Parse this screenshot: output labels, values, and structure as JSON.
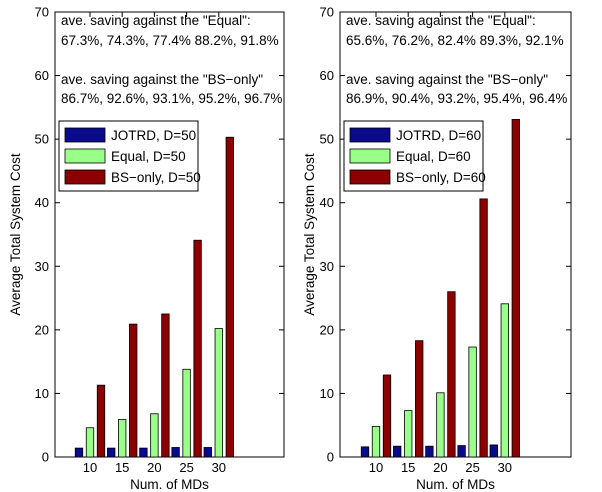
{
  "chart_data": [
    {
      "type": "bar",
      "categories": [
        "10",
        "15",
        "20",
        "25",
        "30"
      ],
      "xlabel": "Num. of MDs",
      "ylabel": "Average Total System Cost",
      "ylim": [
        0,
        70
      ],
      "yticks": [
        0,
        10,
        20,
        30,
        40,
        50,
        60,
        70
      ],
      "grid": false,
      "legend_position": "middle-left",
      "series": [
        {
          "name": "JOTRD, D=50",
          "color": "#0a0a8c",
          "values": [
            1.4,
            1.4,
            1.4,
            1.5,
            1.5
          ]
        },
        {
          "name": "Equal, D=50",
          "color": "#99ff88",
          "values": [
            4.6,
            5.9,
            6.8,
            13.8,
            20.2
          ]
        },
        {
          "name": "BS−only, D=50",
          "color": "#8b0000",
          "values": [
            11.3,
            20.9,
            22.5,
            34.1,
            50.3
          ]
        }
      ],
      "annotations": [
        "ave. saving against the \"Equal\":",
        "67.3%, 74.3%, 77.4% 88.2%, 91.8%",
        "ave. saving against the \"BS−only\"",
        "86.7%, 92.6%, 93.1%, 95.2%, 96.7%"
      ]
    },
    {
      "type": "bar",
      "categories": [
        "10",
        "15",
        "20",
        "25",
        "30"
      ],
      "xlabel": "Num. of MDs",
      "ylabel": "Average Total System Cost",
      "ylim": [
        0,
        70
      ],
      "yticks": [
        0,
        10,
        20,
        30,
        40,
        50,
        60,
        70
      ],
      "grid": false,
      "legend_position": "middle-left",
      "series": [
        {
          "name": "JOTRD, D=60",
          "color": "#0a0a8c",
          "values": [
            1.6,
            1.7,
            1.7,
            1.8,
            1.9
          ]
        },
        {
          "name": "Equal, D=60",
          "color": "#99ff88",
          "values": [
            4.8,
            7.3,
            10.1,
            17.3,
            24.1
          ]
        },
        {
          "name": "BS−only, D=60",
          "color": "#8b0000",
          "values": [
            12.9,
            18.3,
            26.0,
            40.6,
            53.1
          ]
        }
      ],
      "annotations": [
        "ave. saving against the \"Equal\":",
        "65.6%, 76.2%, 82.4% 89.3%, 92.1%",
        "ave. saving against the \"BS−only\"",
        "86.9%, 90.4%, 93.2%, 95.4%, 96.4%"
      ]
    }
  ]
}
